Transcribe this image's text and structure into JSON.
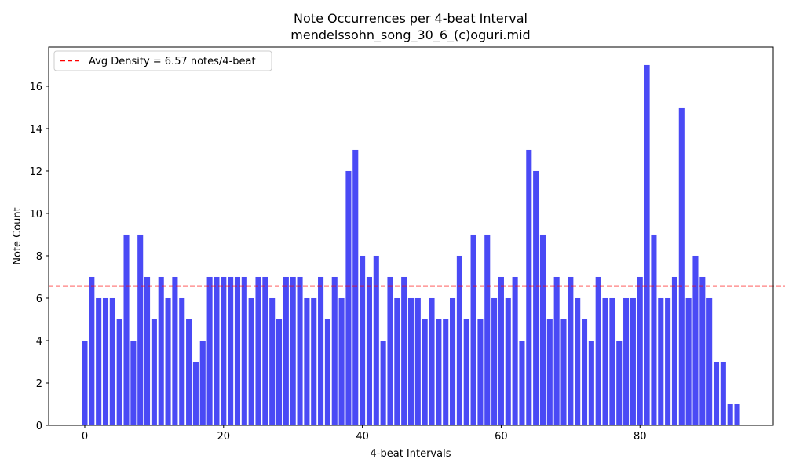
{
  "chart_data": {
    "type": "bar",
    "title": "Note Occurrences per 4-beat Interval",
    "subtitle": "mendelssohn_song_30_6_(c)oguri.mid",
    "xlabel": "4-beat Intervals",
    "ylabel": "Note Count",
    "xlim": [
      -5.2,
      99.2
    ],
    "ylim": [
      0,
      17.85
    ],
    "xticks": [
      0,
      20,
      40,
      60,
      80
    ],
    "yticks": [
      0,
      2,
      4,
      6,
      8,
      10,
      12,
      14,
      16
    ],
    "grid": false,
    "legend_position": "top-left",
    "bar_color": "#4a4af5",
    "x": [
      0,
      1,
      2,
      3,
      4,
      5,
      6,
      7,
      8,
      9,
      10,
      11,
      12,
      13,
      14,
      15,
      16,
      17,
      18,
      19,
      20,
      21,
      22,
      23,
      24,
      25,
      26,
      27,
      28,
      29,
      30,
      31,
      32,
      33,
      34,
      35,
      36,
      37,
      38,
      39,
      40,
      41,
      42,
      43,
      44,
      45,
      46,
      47,
      48,
      49,
      50,
      51,
      52,
      53,
      54,
      55,
      56,
      57,
      58,
      59,
      60,
      61,
      62,
      63,
      64,
      65,
      66,
      67,
      68,
      69,
      70,
      71,
      72,
      73,
      74,
      75,
      76,
      77,
      78,
      79,
      80,
      81,
      82,
      83,
      84,
      85,
      86,
      87,
      88,
      89,
      90,
      91,
      92,
      93,
      94
    ],
    "values": [
      4,
      7,
      6,
      6,
      6,
      5,
      9,
      4,
      9,
      7,
      5,
      7,
      6,
      7,
      6,
      5,
      3,
      4,
      7,
      7,
      7,
      7,
      7,
      7,
      6,
      7,
      7,
      6,
      5,
      7,
      7,
      7,
      6,
      6,
      7,
      5,
      7,
      6,
      12,
      13,
      8,
      7,
      8,
      4,
      7,
      6,
      7,
      6,
      6,
      5,
      6,
      5,
      5,
      6,
      8,
      5,
      9,
      5,
      9,
      6,
      7,
      6,
      7,
      4,
      13,
      12,
      9,
      5,
      7,
      5,
      7,
      6,
      5,
      4,
      7,
      6,
      6,
      4,
      6,
      6,
      7,
      17,
      9,
      6,
      6,
      7,
      15,
      6,
      8,
      7,
      6,
      3,
      3,
      1,
      1
    ],
    "reference_line": {
      "label": "Avg Density = 6.57 notes/4-beat",
      "value": 6.57,
      "color": "#ff0000",
      "style": "dashed"
    }
  }
}
